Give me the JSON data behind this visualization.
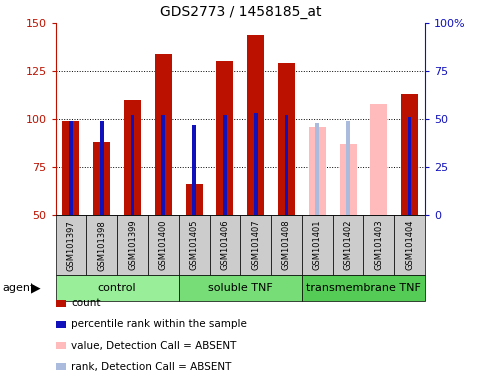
{
  "title": "GDS2773 / 1458185_at",
  "samples": [
    "GSM101397",
    "GSM101398",
    "GSM101399",
    "GSM101400",
    "GSM101405",
    "GSM101406",
    "GSM101407",
    "GSM101408",
    "GSM101401",
    "GSM101402",
    "GSM101403",
    "GSM101404"
  ],
  "groups": [
    {
      "name": "control",
      "start": 0,
      "end": 4,
      "color": "#99ee99"
    },
    {
      "name": "soluble TNF",
      "start": 4,
      "end": 8,
      "color": "#77dd77"
    },
    {
      "name": "transmembrane TNF",
      "start": 8,
      "end": 12,
      "color": "#55cc55"
    }
  ],
  "count_values": [
    99,
    88,
    110,
    134,
    66,
    130,
    144,
    129,
    null,
    null,
    null,
    113
  ],
  "count_absent_values": [
    null,
    null,
    null,
    null,
    null,
    null,
    null,
    null,
    96,
    87,
    108,
    null
  ],
  "percentile_values": [
    49,
    49,
    52,
    52,
    47,
    52,
    53,
    52,
    null,
    null,
    null,
    51
  ],
  "percentile_absent_values": [
    null,
    null,
    null,
    null,
    null,
    null,
    null,
    null,
    48,
    49,
    null,
    null
  ],
  "ylim_left": [
    50,
    150
  ],
  "ylim_right": [
    0,
    100
  ],
  "yticks_left": [
    50,
    75,
    100,
    125,
    150
  ],
  "yticks_right": [
    0,
    25,
    50,
    75,
    100
  ],
  "ytick_labels_left": [
    "50",
    "75",
    "100",
    "125",
    "150"
  ],
  "ytick_labels_right": [
    "0",
    "25",
    "50",
    "75",
    "100%"
  ],
  "hlines": [
    75,
    100,
    125
  ],
  "count_color": "#bb1100",
  "count_absent_color": "#ffbbbb",
  "percentile_color": "#1111bb",
  "percentile_absent_color": "#aabbdd",
  "plot_bg": "#ffffff",
  "legend_items": [
    {
      "color": "#bb1100",
      "label": "count",
      "marker": "s"
    },
    {
      "color": "#1111bb",
      "label": "percentile rank within the sample",
      "marker": "s"
    },
    {
      "color": "#ffbbbb",
      "label": "value, Detection Call = ABSENT",
      "marker": "s"
    },
    {
      "color": "#aabbdd",
      "label": "rank, Detection Call = ABSENT",
      "marker": "s"
    }
  ]
}
